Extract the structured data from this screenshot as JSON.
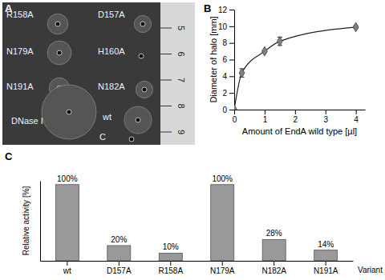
{
  "chart_data": [
    {
      "type": "image",
      "title": "A",
      "categories": [
        "R158A",
        "D157A",
        "N179A",
        "H160A",
        "N191A",
        "N182A",
        "DNase I",
        "wt",
        "C"
      ],
      "values": [
        6,
        5,
        7,
        0,
        6,
        5,
        16,
        8,
        0
      ],
      "ruler": [
        5,
        6,
        7,
        8,
        9
      ]
    },
    {
      "type": "line",
      "title": "B",
      "x_label": "Amount of EndA wild type [µl]",
      "y_label": "Diameter of halo [mm]",
      "x": [
        0,
        0.25,
        1,
        1.5,
        4
      ],
      "values": [
        0,
        4.4,
        7,
        8.2,
        9.9
      ],
      "errors": [
        0,
        0.5,
        0.15,
        0.5,
        0.15
      ],
      "xlim": [
        0,
        4.3
      ],
      "xticks": [
        0,
        1,
        2,
        3,
        4
      ],
      "ylim": [
        0,
        12
      ],
      "yticks": [
        0,
        2,
        4,
        6,
        8,
        10,
        12
      ],
      "marker": "diamond",
      "color": "#808080"
    },
    {
      "type": "bar",
      "title": "C",
      "x_label": "Variant",
      "y_label": "Relative activity [%]",
      "categories": [
        "wt",
        "D157A",
        "R158A",
        "N179A",
        "N182A",
        "N191A"
      ],
      "values": [
        100,
        20,
        10,
        100,
        28,
        14
      ],
      "value_labels": [
        "100%",
        "20%",
        "10%",
        "100%",
        "28%",
        "14%"
      ],
      "data_labels": true,
      "ylim": [
        0,
        105
      ],
      "tick_labels": "x",
      "color": "#999999"
    }
  ]
}
